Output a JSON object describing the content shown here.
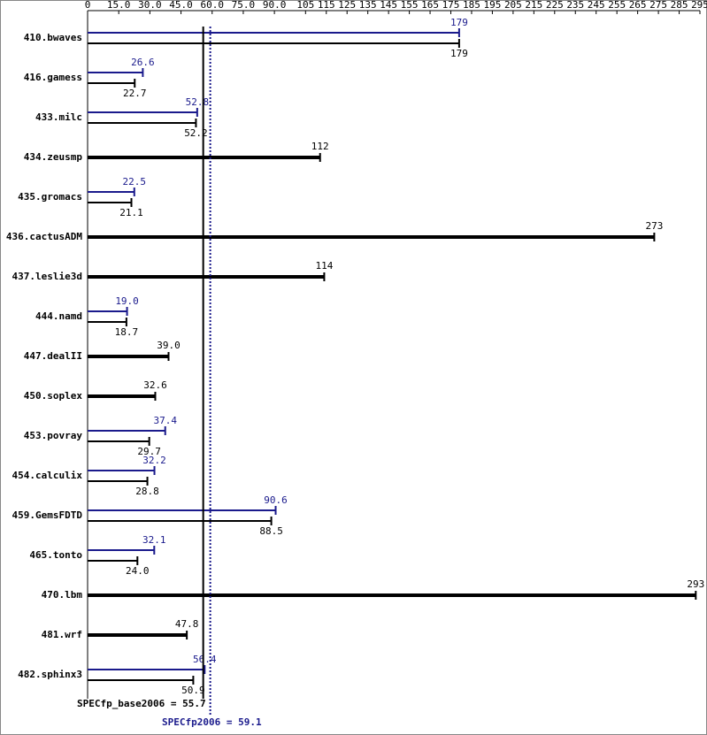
{
  "chart_data": {
    "type": "bar",
    "categories": [
      "410.bwaves",
      "416.gamess",
      "433.milc",
      "434.zeusmp",
      "435.gromacs",
      "436.cactusADM",
      "437.leslie3d",
      "444.namd",
      "447.dealII",
      "450.soplex",
      "453.povray",
      "454.calculix",
      "459.GemsFDTD",
      "465.tonto",
      "470.lbm",
      "481.wrf",
      "482.sphinx3"
    ],
    "series": [
      {
        "color": "#000000",
        "values": [
          179,
          22.7,
          52.2,
          112,
          21.1,
          273,
          114,
          18.7,
          39,
          32.6,
          29.7,
          28.8,
          88.5,
          24,
          293,
          47.8,
          50.9
        ],
        "value_labels": [
          "179",
          "22.7",
          "52.2",
          "112",
          "21.1",
          "273",
          "114",
          "18.7",
          "39.0",
          "32.6",
          "29.7",
          "28.8",
          "88.5",
          "24.0",
          "293",
          "47.8",
          "50.9"
        ]
      },
      {
        "color": "#1a1a8c",
        "values": [
          179,
          26.6,
          52.8,
          null,
          22.5,
          null,
          null,
          19,
          null,
          null,
          37.4,
          32.2,
          90.6,
          32.1,
          null,
          null,
          56.4
        ],
        "value_labels": [
          "179",
          "26.6",
          "52.8",
          null,
          "22.5",
          null,
          null,
          "19.0",
          null,
          null,
          "37.4",
          "32.2",
          "90.6",
          "32.1",
          null,
          null,
          "56.4"
        ]
      }
    ],
    "xlim": [
      0,
      295
    ],
    "xticks": [
      0,
      {
        "value": 15,
        "label": "15.0"
      },
      {
        "value": 30,
        "label": "30.0"
      },
      {
        "value": 45,
        "label": "45.0"
      },
      {
        "value": 60,
        "label": "60.0"
      },
      {
        "value": 75,
        "label": "75.0"
      },
      {
        "value": 90,
        "label": "90.0"
      },
      105,
      115,
      125,
      135,
      145,
      155,
      165,
      175,
      185,
      195,
      205,
      215,
      225,
      235,
      245,
      255,
      265,
      275,
      285,
      295
    ],
    "reference_lines": [
      {
        "label": "SPECfp_base2006 = 55.7",
        "value": 55.7,
        "color": "#000000",
        "dashed": false
      },
      {
        "label": "SPECfp2006 = 59.1",
        "value": 59.1,
        "color": "#1a1a8c",
        "dashed": true
      }
    ]
  }
}
